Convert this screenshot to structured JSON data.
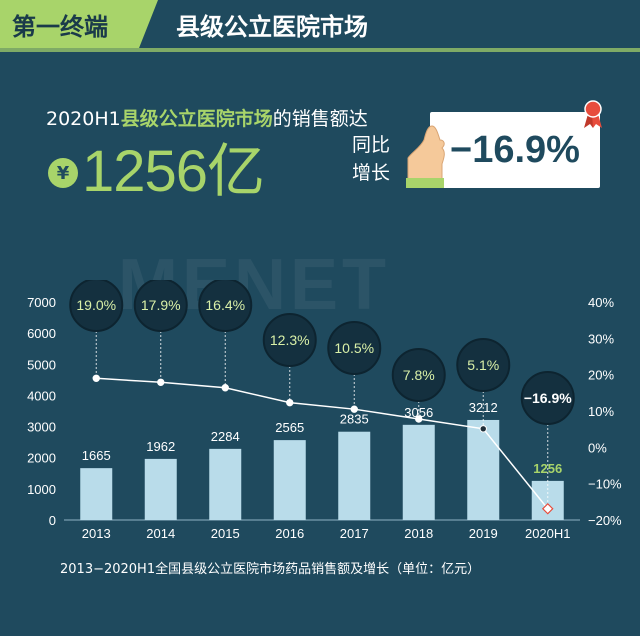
{
  "header": {
    "tag": "第一终端",
    "title": "县级公立医院市场"
  },
  "headline": {
    "prefix": "2020H1",
    "market": "县级公立医院市场",
    "suffix": "的销售额达",
    "currency_symbol": "¥",
    "amount": "1256亿",
    "yoy_label_line1": "同比",
    "yoy_label_line2": "增长",
    "yoy_value": "−16.9%"
  },
  "watermark": "MENET",
  "colors": {
    "background": "#1f4a5e",
    "accent": "#a8d46a",
    "bar": "#b9dcea",
    "line": "#ffffff",
    "bubble_fill": "#14303f"
  },
  "chart_data": {
    "type": "bar",
    "categories": [
      "2013",
      "2014",
      "2015",
      "2016",
      "2017",
      "2018",
      "2019",
      "2020H1"
    ],
    "series": [
      {
        "type": "bar",
        "axis": "left",
        "values": [
          1665,
          1962,
          2284,
          2565,
          2835,
          3056,
          3212,
          1256
        ]
      },
      {
        "type": "line",
        "axis": "right",
        "values": [
          19.0,
          17.9,
          16.4,
          12.3,
          10.5,
          7.8,
          5.1,
          -16.9
        ]
      }
    ],
    "bar_labels": [
      "1665",
      "1962",
      "2284",
      "2565",
      "2835",
      "3056",
      "3212",
      "1256"
    ],
    "growth_labels": [
      "19.0%",
      "17.9%",
      "16.4%",
      "12.3%",
      "10.5%",
      "7.8%",
      "5.1%",
      "−16.9%"
    ],
    "y_left": {
      "min": 0,
      "max": 7000,
      "ticks": [
        "0",
        "1000",
        "2000",
        "3000",
        "4000",
        "5000",
        "6000",
        "7000"
      ]
    },
    "y_right": {
      "min": -20,
      "max": 40,
      "ticks": [
        "−20%",
        "−10%",
        "0%",
        "10%",
        "20%",
        "30%",
        "40%"
      ]
    },
    "caption": "2013−2020H1全国县级公立医院市场药品销售额及增长（单位：亿元）"
  }
}
